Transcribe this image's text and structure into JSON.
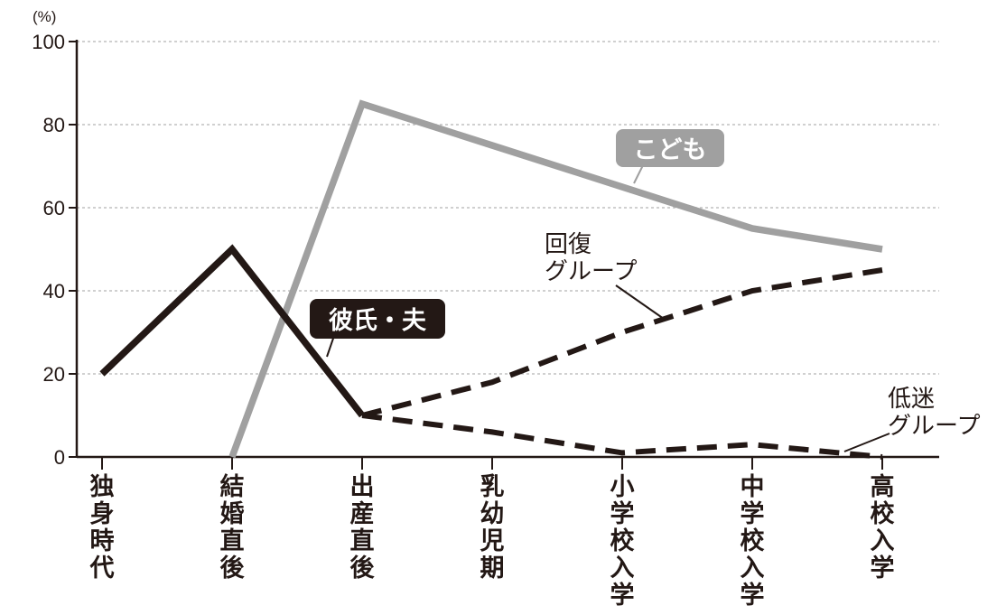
{
  "chart_data": {
    "type": "line",
    "y_unit": "(%)",
    "ylim": [
      0,
      100
    ],
    "yticks": [
      0,
      20,
      40,
      60,
      80,
      100
    ],
    "grid": true,
    "categories": [
      "独身時代",
      "結婚直後",
      "出産直後",
      "乳幼児期",
      "小学校入学",
      "中学校入学",
      "高校入学"
    ],
    "series": [
      {
        "name": "彼氏・夫",
        "style": "solid",
        "color": "#231815",
        "values": [
          20,
          50,
          10,
          null,
          null,
          null,
          null
        ]
      },
      {
        "name": "こども",
        "style": "solid",
        "color": "#a0a0a0",
        "values": [
          null,
          0,
          85,
          75,
          65,
          55,
          50
        ]
      },
      {
        "name": "回復\nグループ",
        "style": "dashed",
        "color": "#231815",
        "values": [
          null,
          null,
          10,
          18,
          30,
          40,
          45
        ]
      },
      {
        "name": "低迷\nグループ",
        "style": "dashed",
        "color": "#231815",
        "values": [
          null,
          null,
          10,
          6,
          1,
          3,
          0
        ]
      }
    ]
  }
}
